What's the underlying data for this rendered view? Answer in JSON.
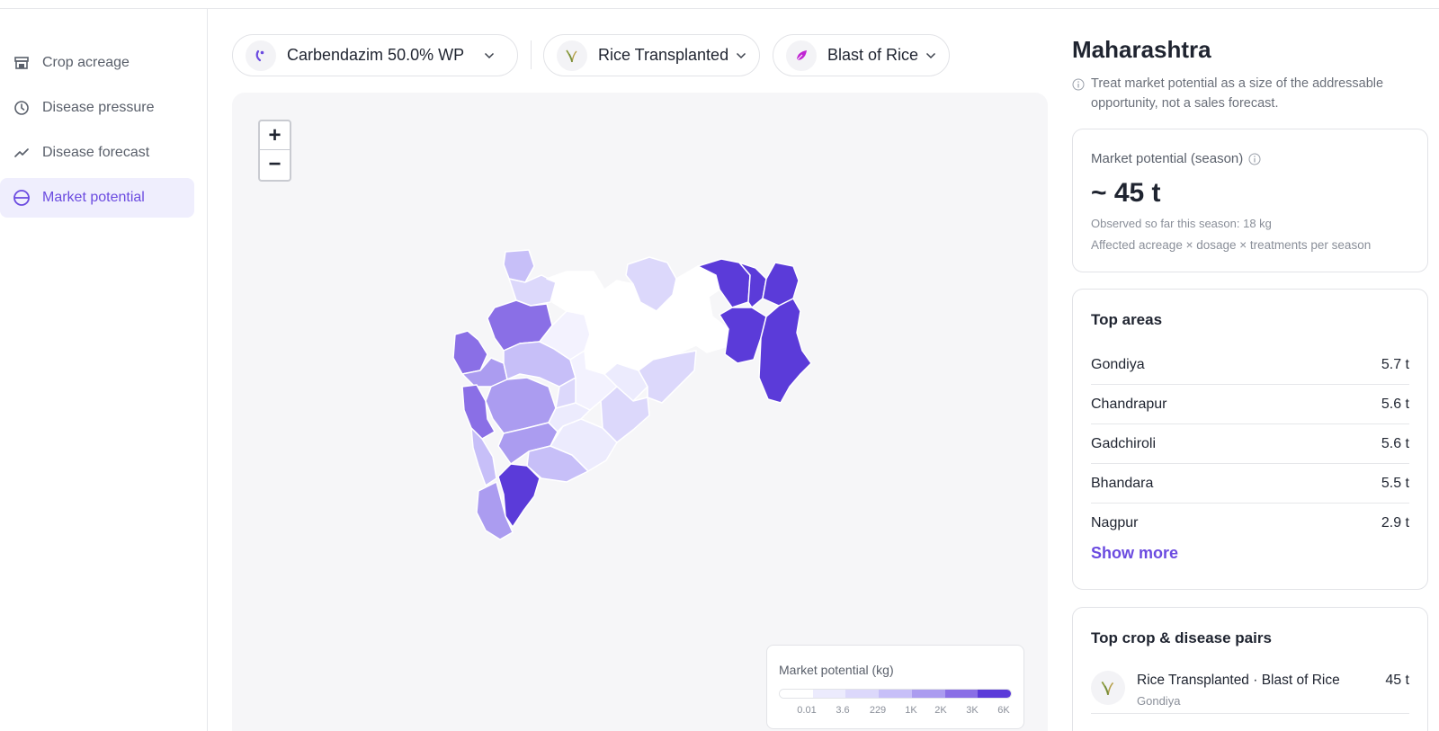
{
  "sidebar": {
    "items": [
      {
        "label": "Crop acreage",
        "icon": "store-icon"
      },
      {
        "label": "Disease pressure",
        "icon": "clock-icon"
      },
      {
        "label": "Disease forecast",
        "icon": "trend-line-icon"
      },
      {
        "label": "Market potential",
        "icon": "circle-divided-icon",
        "active": true
      }
    ]
  },
  "filters": {
    "product": "Carbendazim 50.0% WP",
    "crop": "Rice Transplanted",
    "disease": "Blast of Rice"
  },
  "map": {
    "zoom_in": "+",
    "zoom_out": "−",
    "legend": {
      "title": "Market potential (kg)",
      "ticks": [
        "0.01",
        "3.6",
        "229",
        "1K",
        "2K",
        "3K",
        "6K"
      ],
      "colors": [
        "#ffffff",
        "#ecebfd",
        "#dcd8fb",
        "#c7bff8",
        "#ab9cf0",
        "#8a6fe6",
        "#5b3bd9"
      ]
    }
  },
  "region": {
    "title": "Maharashtra",
    "note": "Treat market potential as a size of the addressable opportunity, not a sales forecast."
  },
  "market_potential": {
    "label": "Market potential (season)",
    "value": "~ 45 t",
    "observed": "Observed so far this season: 18 kg",
    "formula": "Affected acreage × dosage × treatments per season"
  },
  "top_areas": {
    "title": "Top areas",
    "rows": [
      {
        "name": "Gondiya",
        "value": "5.7 t"
      },
      {
        "name": "Chandrapur",
        "value": "5.6 t"
      },
      {
        "name": "Gadchiroli",
        "value": "5.6 t"
      },
      {
        "name": "Bhandara",
        "value": "5.5 t"
      },
      {
        "name": "Nagpur",
        "value": "2.9 t"
      }
    ],
    "show_more": "Show more"
  },
  "top_pairs": {
    "title": "Top crop & disease pairs",
    "rows": [
      {
        "name": "Rice Transplanted · Blast of Rice",
        "area": "Gondiya",
        "value": "45 t"
      }
    ]
  },
  "accent_color": "#6b4be0"
}
